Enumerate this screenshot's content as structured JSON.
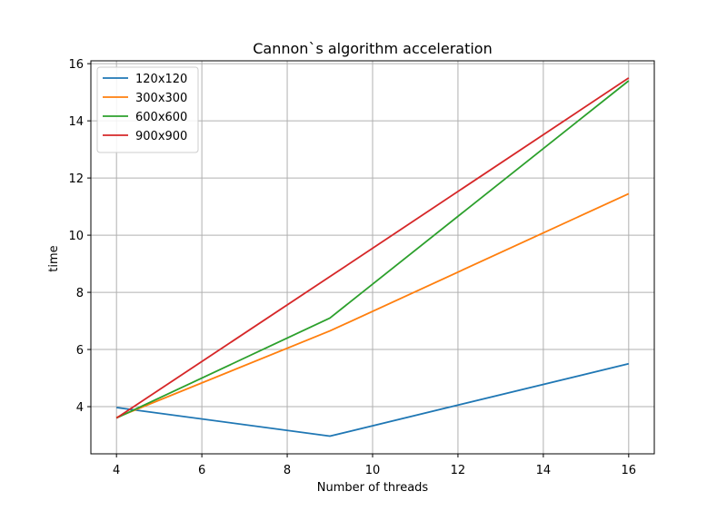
{
  "chart_data": {
    "type": "line",
    "title": "Cannon`s algorithm acceleration",
    "xlabel": "Number of threads",
    "ylabel": "time",
    "xlim": [
      3.4,
      16.6
    ],
    "ylim": [
      2.35,
      16.1
    ],
    "xticks": [
      4,
      6,
      8,
      10,
      12,
      14,
      16
    ],
    "yticks": [
      4,
      6,
      8,
      10,
      12,
      14,
      16
    ],
    "grid": true,
    "legend_position": "top-left",
    "x": [
      4,
      9,
      16
    ],
    "series": [
      {
        "name": "120x120",
        "color": "#1f77b4",
        "values": [
          3.97,
          2.97,
          5.5
        ]
      },
      {
        "name": "300x300",
        "color": "#ff7f0e",
        "values": [
          3.62,
          6.65,
          11.45
        ]
      },
      {
        "name": "600x600",
        "color": "#2ca02c",
        "values": [
          3.6,
          7.1,
          15.4
        ]
      },
      {
        "name": "900x900",
        "color": "#d62728",
        "values": [
          3.6,
          8.55,
          15.5
        ]
      }
    ]
  }
}
